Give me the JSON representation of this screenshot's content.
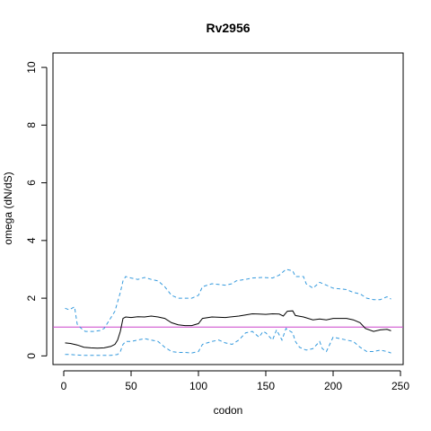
{
  "chart_data": {
    "type": "line",
    "title": "Rv2956",
    "xlabel": "codon",
    "ylabel": "omega (dN/dS)",
    "xlim": [
      -8,
      252
    ],
    "ylim": [
      -0.3,
      10.5
    ],
    "x_ticks": [
      0,
      50,
      100,
      150,
      200,
      250
    ],
    "y_ticks": [
      0,
      2,
      4,
      6,
      8,
      10
    ],
    "reference_line": {
      "y": 1,
      "color": "#cc44cc"
    },
    "colors": {
      "mean": "#000000",
      "bounds": "#3399dd"
    },
    "series": [
      {
        "id": "mean",
        "style": "solid",
        "points": [
          [
            1,
            0.45
          ],
          [
            5,
            0.43
          ],
          [
            10,
            0.38
          ],
          [
            15,
            0.3
          ],
          [
            20,
            0.28
          ],
          [
            25,
            0.27
          ],
          [
            30,
            0.28
          ],
          [
            35,
            0.33
          ],
          [
            38,
            0.4
          ],
          [
            40,
            0.55
          ],
          [
            42,
            0.85
          ],
          [
            44,
            1.3
          ],
          [
            46,
            1.35
          ],
          [
            50,
            1.33
          ],
          [
            55,
            1.36
          ],
          [
            60,
            1.35
          ],
          [
            65,
            1.38
          ],
          [
            70,
            1.35
          ],
          [
            75,
            1.3
          ],
          [
            80,
            1.15
          ],
          [
            85,
            1.08
          ],
          [
            90,
            1.05
          ],
          [
            95,
            1.05
          ],
          [
            100,
            1.12
          ],
          [
            103,
            1.3
          ],
          [
            110,
            1.35
          ],
          [
            120,
            1.33
          ],
          [
            130,
            1.38
          ],
          [
            135,
            1.42
          ],
          [
            140,
            1.46
          ],
          [
            145,
            1.45
          ],
          [
            150,
            1.44
          ],
          [
            155,
            1.46
          ],
          [
            160,
            1.45
          ],
          [
            163,
            1.38
          ],
          [
            166,
            1.55
          ],
          [
            170,
            1.56
          ],
          [
            172,
            1.4
          ],
          [
            178,
            1.35
          ],
          [
            185,
            1.25
          ],
          [
            190,
            1.28
          ],
          [
            195,
            1.25
          ],
          [
            200,
            1.3
          ],
          [
            205,
            1.3
          ],
          [
            210,
            1.3
          ],
          [
            215,
            1.25
          ],
          [
            220,
            1.15
          ],
          [
            224,
            0.95
          ],
          [
            230,
            0.85
          ],
          [
            235,
            0.9
          ],
          [
            240,
            0.92
          ],
          [
            243,
            0.87
          ]
        ]
      },
      {
        "id": "upper",
        "style": "dashed",
        "points": [
          [
            1,
            1.65
          ],
          [
            4,
            1.6
          ],
          [
            8,
            1.7
          ],
          [
            10,
            1.1
          ],
          [
            13,
            0.95
          ],
          [
            16,
            0.85
          ],
          [
            22,
            0.85
          ],
          [
            27,
            0.88
          ],
          [
            30,
            0.95
          ],
          [
            34,
            1.25
          ],
          [
            38,
            1.55
          ],
          [
            42,
            2.2
          ],
          [
            44,
            2.6
          ],
          [
            46,
            2.75
          ],
          [
            50,
            2.7
          ],
          [
            55,
            2.65
          ],
          [
            60,
            2.72
          ],
          [
            65,
            2.65
          ],
          [
            70,
            2.6
          ],
          [
            75,
            2.4
          ],
          [
            80,
            2.1
          ],
          [
            85,
            2.0
          ],
          [
            90,
            2.0
          ],
          [
            95,
            2.0
          ],
          [
            100,
            2.1
          ],
          [
            103,
            2.4
          ],
          [
            110,
            2.5
          ],
          [
            120,
            2.45
          ],
          [
            125,
            2.5
          ],
          [
            128,
            2.6
          ],
          [
            135,
            2.65
          ],
          [
            140,
            2.7
          ],
          [
            148,
            2.72
          ],
          [
            155,
            2.7
          ],
          [
            160,
            2.8
          ],
          [
            165,
            3.0
          ],
          [
            170,
            2.95
          ],
          [
            172,
            2.75
          ],
          [
            178,
            2.75
          ],
          [
            180,
            2.5
          ],
          [
            185,
            2.35
          ],
          [
            190,
            2.55
          ],
          [
            195,
            2.45
          ],
          [
            200,
            2.35
          ],
          [
            210,
            2.3
          ],
          [
            215,
            2.2
          ],
          [
            220,
            2.15
          ],
          [
            225,
            2.0
          ],
          [
            230,
            1.95
          ],
          [
            235,
            1.95
          ],
          [
            240,
            2.05
          ],
          [
            243,
            1.97
          ]
        ]
      },
      {
        "id": "lower",
        "style": "dashed",
        "points": [
          [
            1,
            0.05
          ],
          [
            5,
            0.05
          ],
          [
            10,
            0.03
          ],
          [
            15,
            0.02
          ],
          [
            20,
            0.02
          ],
          [
            25,
            0.02
          ],
          [
            30,
            0.02
          ],
          [
            35,
            0.02
          ],
          [
            40,
            0.05
          ],
          [
            42,
            0.15
          ],
          [
            44,
            0.4
          ],
          [
            46,
            0.5
          ],
          [
            50,
            0.5
          ],
          [
            55,
            0.55
          ],
          [
            60,
            0.6
          ],
          [
            65,
            0.55
          ],
          [
            70,
            0.5
          ],
          [
            75,
            0.3
          ],
          [
            80,
            0.15
          ],
          [
            85,
            0.12
          ],
          [
            90,
            0.12
          ],
          [
            95,
            0.1
          ],
          [
            100,
            0.15
          ],
          [
            103,
            0.4
          ],
          [
            110,
            0.5
          ],
          [
            115,
            0.55
          ],
          [
            120,
            0.45
          ],
          [
            125,
            0.4
          ],
          [
            130,
            0.55
          ],
          [
            135,
            0.8
          ],
          [
            140,
            0.85
          ],
          [
            145,
            0.65
          ],
          [
            148,
            0.85
          ],
          [
            150,
            0.8
          ],
          [
            155,
            0.55
          ],
          [
            158,
            0.9
          ],
          [
            162,
            0.55
          ],
          [
            165,
            0.95
          ],
          [
            170,
            0.8
          ],
          [
            172,
            0.5
          ],
          [
            175,
            0.3
          ],
          [
            180,
            0.2
          ],
          [
            185,
            0.25
          ],
          [
            190,
            0.5
          ],
          [
            192,
            0.25
          ],
          [
            195,
            0.15
          ],
          [
            200,
            0.65
          ],
          [
            205,
            0.6
          ],
          [
            210,
            0.55
          ],
          [
            215,
            0.5
          ],
          [
            220,
            0.3
          ],
          [
            225,
            0.15
          ],
          [
            230,
            0.15
          ],
          [
            235,
            0.2
          ],
          [
            240,
            0.15
          ],
          [
            243,
            0.1
          ]
        ]
      }
    ]
  }
}
